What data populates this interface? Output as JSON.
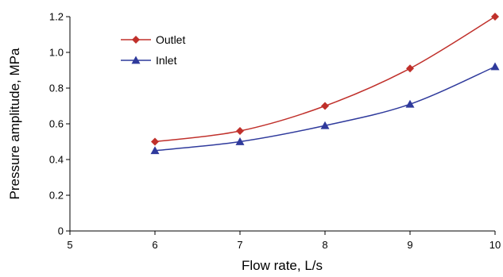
{
  "chart_data": {
    "type": "line",
    "title": "",
    "xlabel": "Flow rate, L/s",
    "ylabel": "Pressure amplitude, MPa",
    "xlim": [
      5,
      10
    ],
    "ylim": [
      0,
      1.2
    ],
    "x_ticks": [
      "5",
      "6",
      "7",
      "8",
      "9",
      "10"
    ],
    "y_ticks": [
      "0",
      "0.2",
      "0.4",
      "0.6",
      "0.8",
      "1.0",
      "1.2"
    ],
    "grid": false,
    "legend_position": "top-left",
    "series": [
      {
        "name": "Outlet",
        "color": "#C0302B",
        "marker": "diamond",
        "x": [
          6,
          7,
          8,
          9,
          10
        ],
        "y": [
          0.5,
          0.56,
          0.7,
          0.91,
          1.2
        ]
      },
      {
        "name": "Inlet",
        "color": "#2F3A9C",
        "marker": "triangle",
        "x": [
          6,
          7,
          8,
          9,
          10
        ],
        "y": [
          0.45,
          0.5,
          0.59,
          0.71,
          0.92
        ]
      }
    ]
  }
}
